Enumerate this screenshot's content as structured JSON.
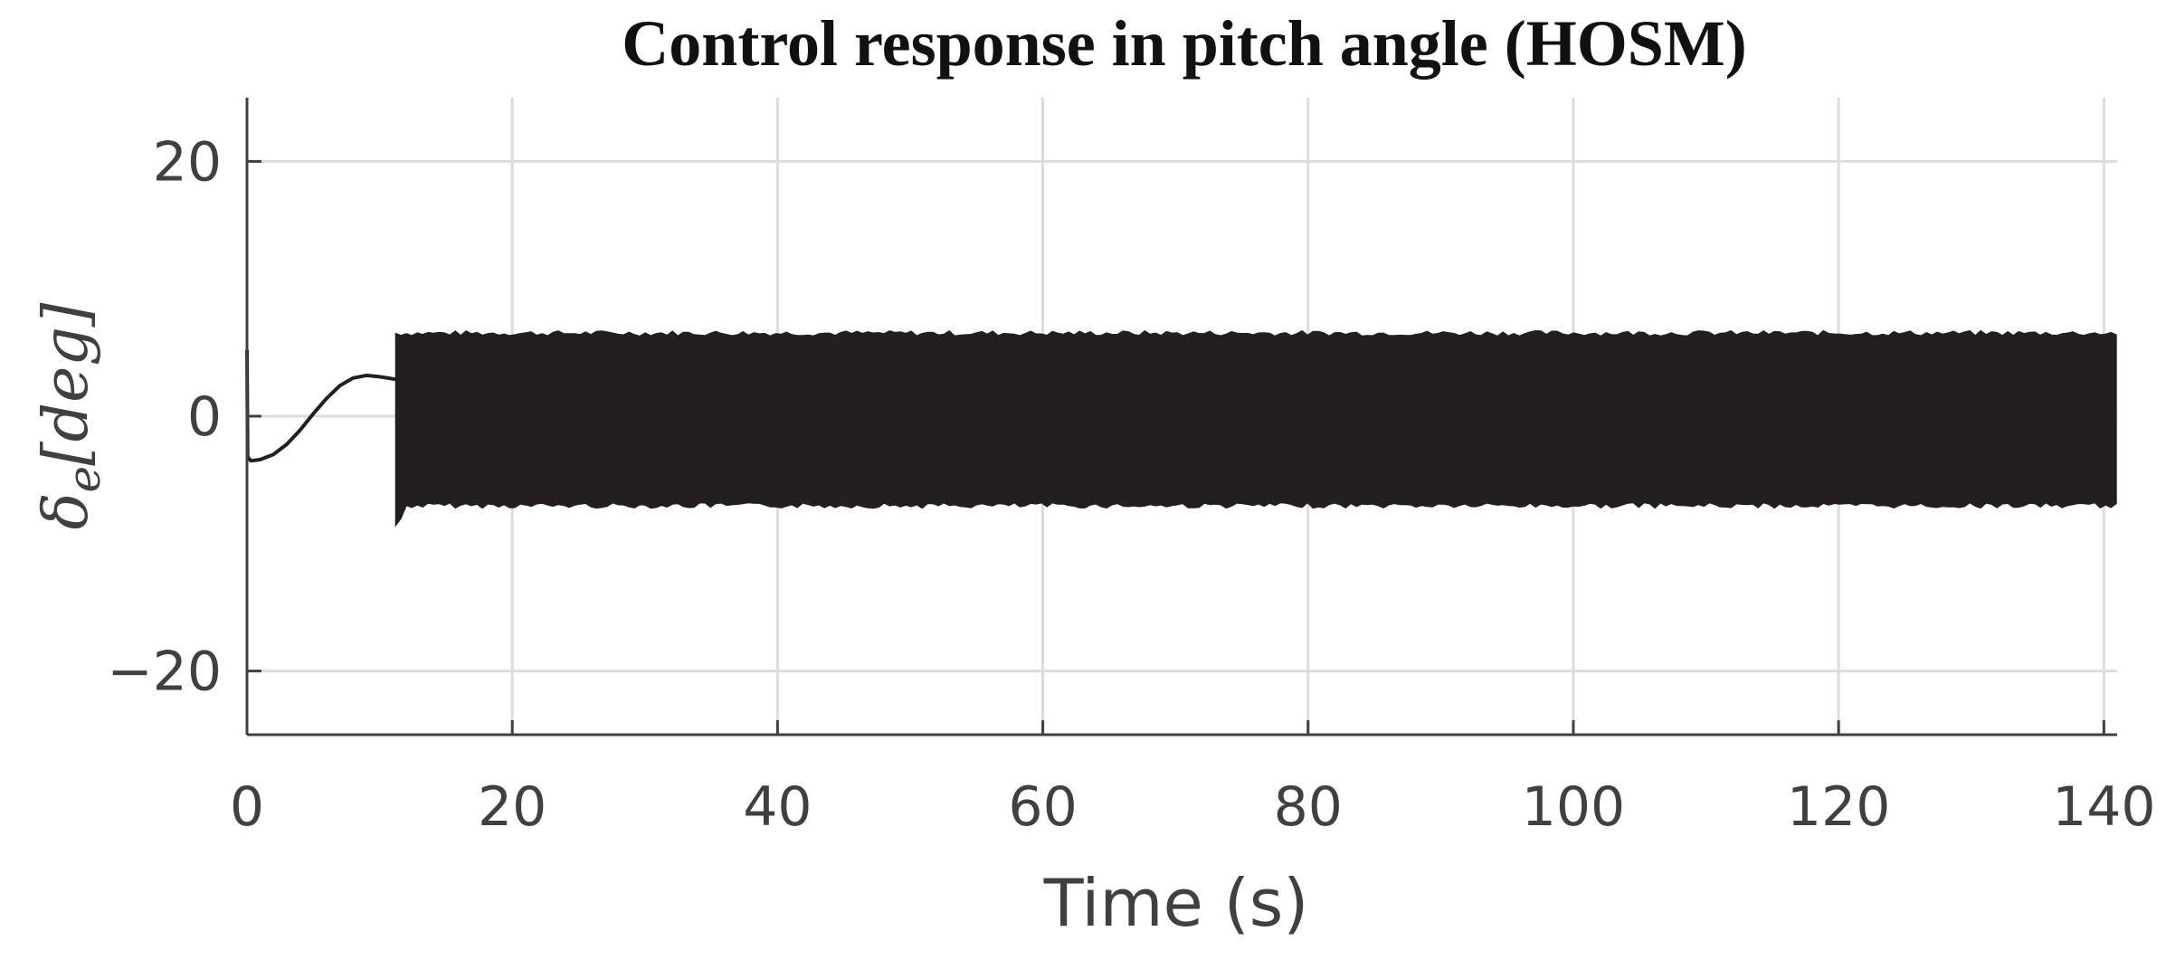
{
  "chart_data": {
    "type": "line",
    "title": "Control response in pitch angle (HOSM)",
    "xlabel": "Time (s)",
    "ylabel": "δe[deg]",
    "ylabel_main": "δ",
    "ylabel_sub": "e",
    "ylabel_unit": "[deg]",
    "xlim": [
      0,
      141
    ],
    "ylim": [
      -25,
      25
    ],
    "x_ticks": [
      0,
      20,
      40,
      60,
      80,
      100,
      120,
      140
    ],
    "x_tick_labels": [
      "0",
      "20",
      "40",
      "60",
      "80",
      "100",
      "120",
      "140"
    ],
    "y_ticks": [
      -20,
      0,
      20
    ],
    "y_tick_labels": [
      "−20",
      "0",
      "20"
    ],
    "grid": true,
    "line_color": "#231f20",
    "series": [
      {
        "style": "smooth transient",
        "x": [
          0,
          0.05,
          0.3,
          1,
          2,
          3,
          4,
          5,
          6,
          7,
          8,
          9,
          10,
          11.2
        ],
        "y": [
          5.2,
          -3.2,
          -3.5,
          -3.4,
          -3.0,
          -2.2,
          -1.1,
          0.2,
          1.4,
          2.4,
          3.0,
          3.2,
          3.1,
          2.9
        ]
      },
      {
        "style": "high-frequency chattering band",
        "x_range": [
          11.2,
          141
        ],
        "upper_envelope": 6.3,
        "lower_envelope": -6.8,
        "initial_spike": -8.6
      }
    ]
  }
}
